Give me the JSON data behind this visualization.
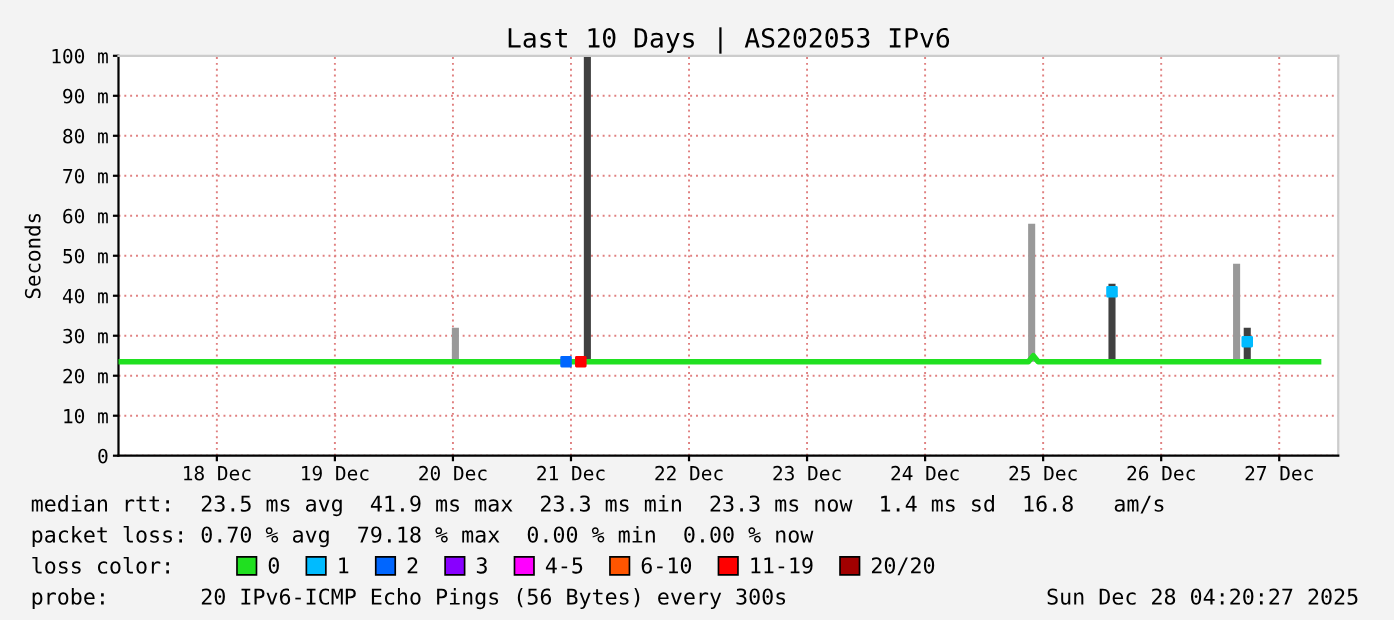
{
  "chart_data": {
    "type": "line",
    "title": "Last 10 Days | AS202053 IPv6",
    "ylabel": "Seconds",
    "legend_title": "loss color:",
    "xlim": [
      "2025-12-17T16:00",
      "2025-12-28T00:00"
    ],
    "xticks": [
      {
        "value": "2025-12-18T12:00",
        "label": "18 Dec"
      },
      {
        "value": "2025-12-19T12:00",
        "label": "19 Dec"
      },
      {
        "value": "2025-12-20T12:00",
        "label": "20 Dec"
      },
      {
        "value": "2025-12-21T12:00",
        "label": "21 Dec"
      },
      {
        "value": "2025-12-22T12:00",
        "label": "22 Dec"
      },
      {
        "value": "2025-12-23T12:00",
        "label": "23 Dec"
      },
      {
        "value": "2025-12-24T12:00",
        "label": "24 Dec"
      },
      {
        "value": "2025-12-25T12:00",
        "label": "25 Dec"
      },
      {
        "value": "2025-12-26T12:00",
        "label": "26 Dec"
      },
      {
        "value": "2025-12-27T12:00",
        "label": "27 Dec"
      }
    ],
    "ylim": [
      0,
      100
    ],
    "yticks": [
      0,
      {
        "value": 10,
        "label": "10 m"
      },
      {
        "value": 20,
        "label": "20 m"
      },
      {
        "value": 30,
        "label": "30 m"
      },
      {
        "value": 40,
        "label": "40 m"
      },
      {
        "value": 50,
        "label": "50 m"
      },
      {
        "value": 60,
        "label": "60 m"
      },
      {
        "value": 70,
        "label": "70 m"
      },
      {
        "value": 80,
        "label": "80 m"
      },
      {
        "value": 90,
        "label": "90 m"
      },
      {
        "value": 100,
        "label": "100 m"
      }
    ],
    "grid": true,
    "legend": "bottom",
    "series": [
      {
        "type": "bar",
        "color": "#999999",
        "x": [
          "2025-12-20T12:30",
          "2025-12-25T09:40",
          "2025-12-27T03:20"
        ],
        "base": [
          23.5,
          23.5,
          23.5
        ],
        "values": [
          8.5,
          34.5,
          24.5
        ]
      },
      {
        "type": "bar",
        "color": "#404040",
        "x": [
          "2025-12-21T15:20",
          "2025-12-26T02:00",
          "2025-12-27T05:30"
        ],
        "base": [
          23.5,
          23.5,
          23.5
        ],
        "values": [
          76.5,
          19.5,
          8.5
        ]
      },
      {
        "name": "0",
        "color": "#20e020",
        "x": [
          "2025-12-17T16:00",
          "2025-12-25T09:00",
          "2025-12-25T10:00",
          "2025-12-25T11:00",
          "2025-12-27T20:00"
        ],
        "values": [
          23.5,
          23.5,
          25,
          23.5,
          23.5
        ]
      },
      {
        "name": "1",
        "type": "scatter",
        "color": "#00bbff",
        "x": [
          "2025-12-26T02:00",
          "2025-12-27T05:30"
        ],
        "values": [
          41,
          28.5
        ]
      },
      {
        "name": "2",
        "type": "scatter",
        "color": "#0066ff",
        "x": [
          "2025-12-21T11:00"
        ],
        "values": [
          23.5
        ]
      },
      {
        "name": "3",
        "type": "scatter",
        "color": "#8800ff",
        "x": [
          null
        ],
        "values": [
          null
        ]
      },
      {
        "name": "4-5",
        "type": "scatter",
        "color": "#ff00ff",
        "x": [
          null
        ],
        "values": [
          null
        ]
      },
      {
        "name": "6-10",
        "type": "scatter",
        "color": "#ff5500",
        "x": [
          null
        ],
        "values": [
          null
        ]
      },
      {
        "name": "11-19",
        "type": "scatter",
        "color": "#ff0000",
        "x": [
          "2025-12-21T14:00"
        ],
        "values": [
          23.5
        ]
      },
      {
        "name": "20/20",
        "type": "scatter",
        "color": "#a10000",
        "x": [
          null
        ],
        "values": [
          null
        ]
      }
    ],
    "annotations": [
      "median rtt:  23.5 ms avg  41.9 ms max  23.3 ms min  23.3 ms now  1.4 ms sd  16.8   am/s",
      "packet loss: 0.70 % avg  79.18 % max  0.00 % min  0.00 % now",
      "probe:       20 IPv6-ICMP Echo Pings (56 Bytes) every 300s",
      "Sun Dec 28 04:20:27 2025"
    ]
  }
}
